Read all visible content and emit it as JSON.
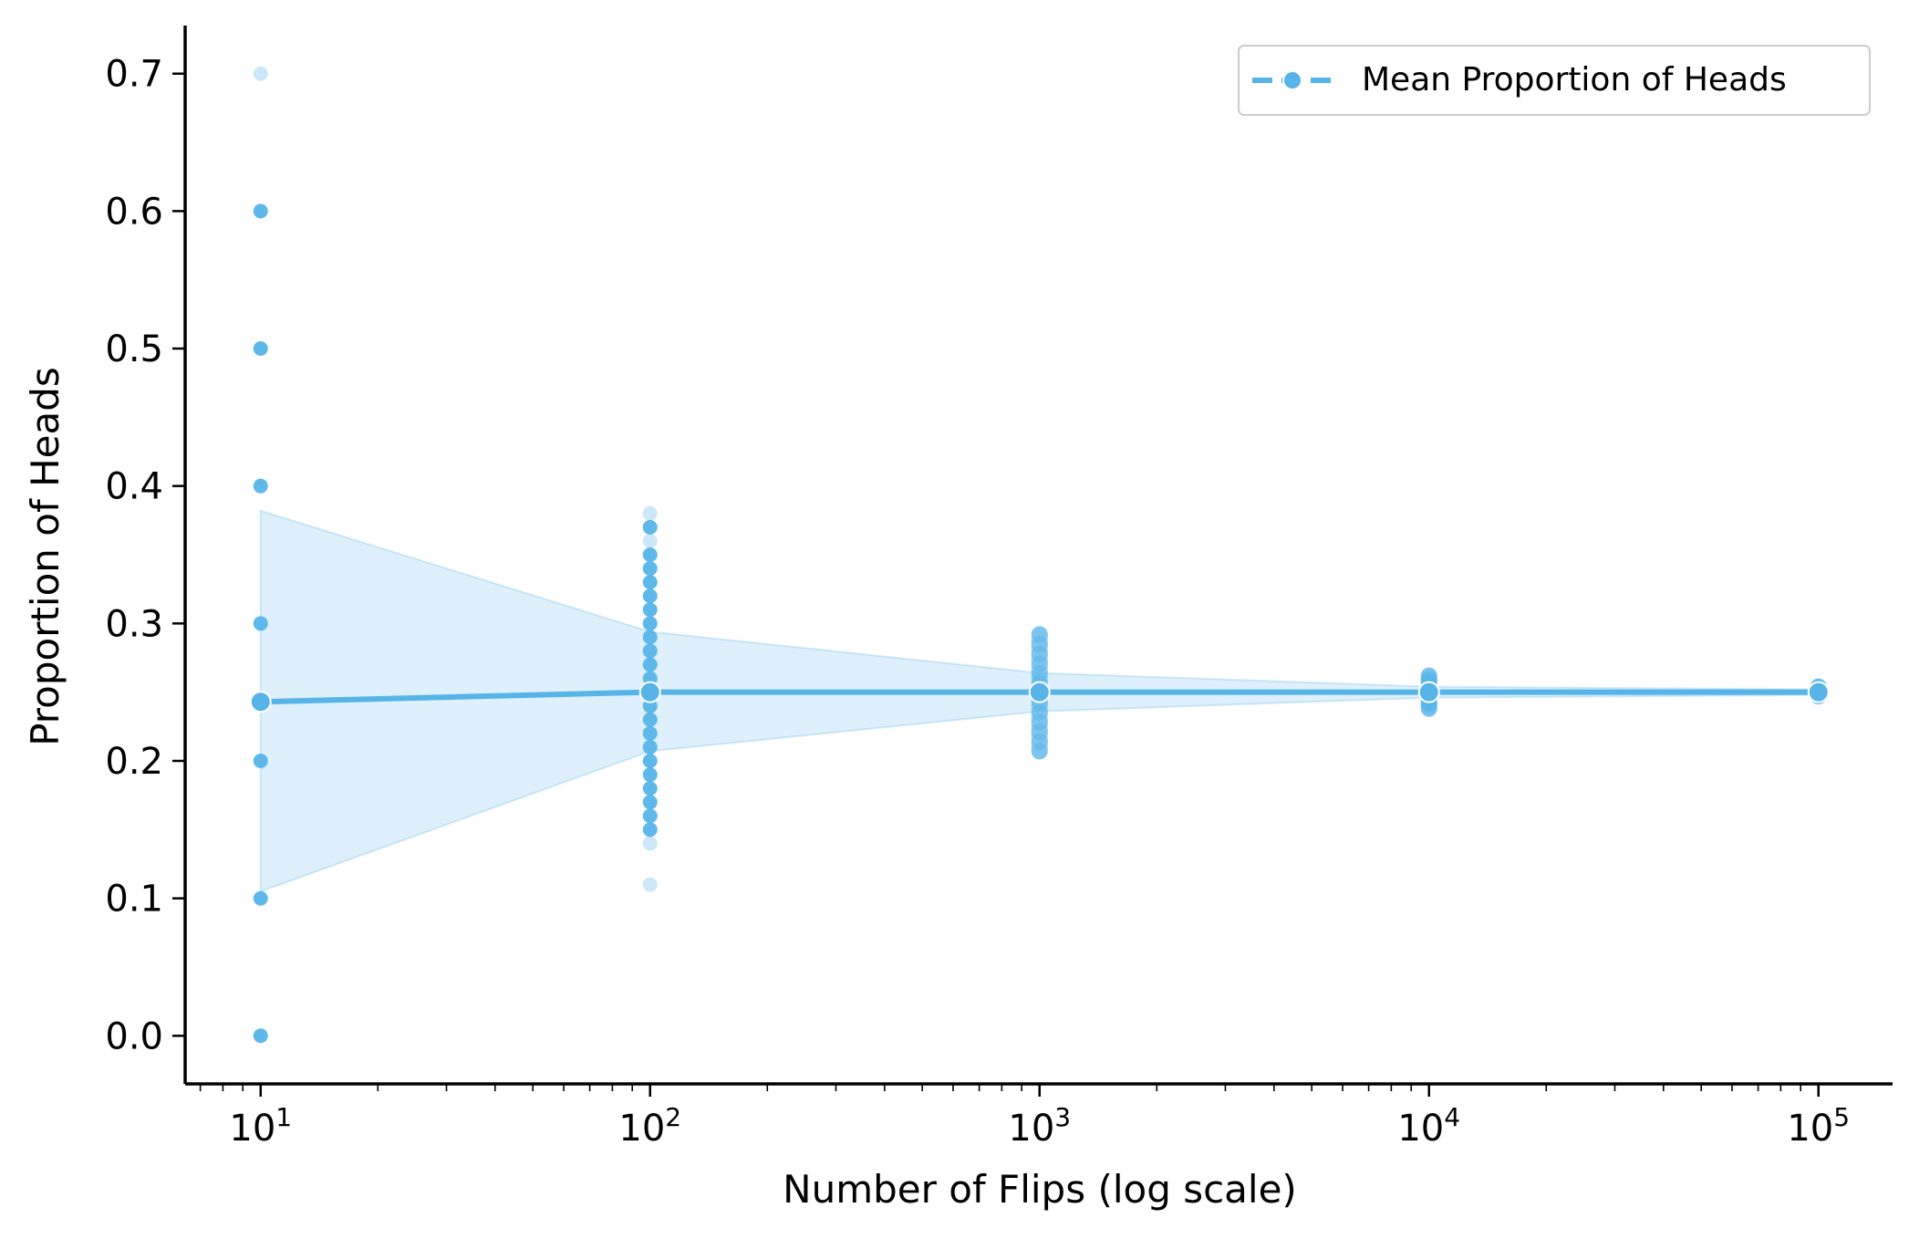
{
  "chart_data": {
    "type": "scatter",
    "title": "",
    "xlabel": "Number of Flips (log scale)",
    "ylabel": "Proportion of Heads",
    "x_scale": "log",
    "xlim": [
      6.4,
      155000
    ],
    "ylim": [
      -0.035,
      0.735
    ],
    "x_ticks": [
      {
        "value": 10,
        "base": "10",
        "exp": "1"
      },
      {
        "value": 100,
        "base": "10",
        "exp": "2"
      },
      {
        "value": 1000,
        "base": "10",
        "exp": "3"
      },
      {
        "value": 10000,
        "base": "10",
        "exp": "4"
      },
      {
        "value": 100000,
        "base": "10",
        "exp": "5"
      }
    ],
    "y_ticks": [
      "0.0",
      "0.1",
      "0.2",
      "0.3",
      "0.4",
      "0.5",
      "0.6",
      "0.7"
    ],
    "grid": false,
    "legend_position": "top-right",
    "color": "#56B4E9",
    "series": [
      {
        "name": "Mean Proportion of Heads",
        "x": [
          10,
          100,
          1000,
          10000,
          100000
        ],
        "y": [
          0.243,
          0.25,
          0.25,
          0.25,
          0.25
        ]
      }
    ],
    "band": {
      "x": [
        10,
        100,
        1000,
        10000,
        100000
      ],
      "lower": [
        0.105,
        0.207,
        0.236,
        0.246,
        0.248
      ],
      "upper": [
        0.382,
        0.294,
        0.264,
        0.254,
        0.252
      ]
    },
    "trials": [
      {
        "x": 10,
        "strong": [
          0.0,
          0.1,
          0.2,
          0.3,
          0.4,
          0.5,
          0.6
        ],
        "faint": [
          0.7
        ]
      },
      {
        "x": 100,
        "strong": [
          0.15,
          0.16,
          0.17,
          0.18,
          0.19,
          0.2,
          0.21,
          0.22,
          0.23,
          0.24,
          0.25,
          0.26,
          0.27,
          0.28,
          0.29,
          0.3,
          0.31,
          0.32,
          0.33,
          0.34,
          0.35,
          0.37
        ],
        "faint": [
          0.11,
          0.14,
          0.36,
          0.38
        ]
      },
      {
        "x": 1000,
        "range": [
          0.207,
          0.292
        ]
      },
      {
        "x": 10000,
        "range": [
          0.238,
          0.262
        ]
      },
      {
        "x": 100000,
        "range": [
          0.247,
          0.254
        ]
      }
    ]
  }
}
